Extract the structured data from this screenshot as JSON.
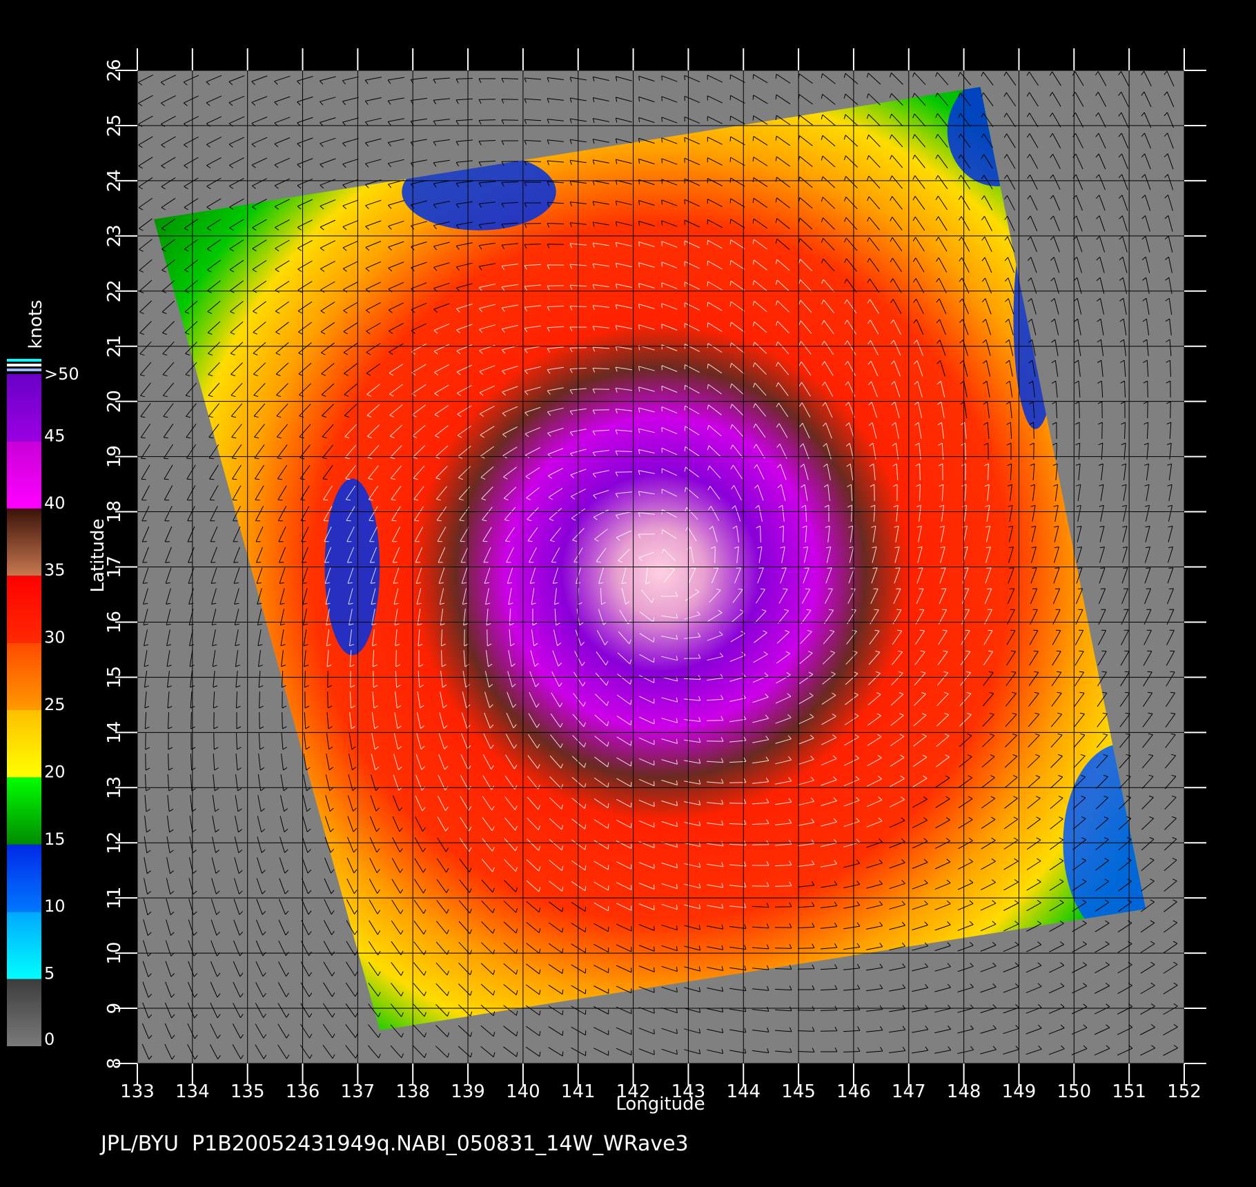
{
  "map": {
    "type": "scatterometer-wind-field",
    "lon_range": [
      133,
      152
    ],
    "lat_range": [
      8,
      26
    ],
    "lon_ticks": [
      "133",
      "134",
      "135",
      "136",
      "137",
      "138",
      "139",
      "140",
      "141",
      "142",
      "143",
      "144",
      "145",
      "146",
      "147",
      "148",
      "149",
      "150",
      "151",
      "152"
    ],
    "lat_ticks": [
      "8",
      "9",
      "10",
      "11",
      "12",
      "13",
      "14",
      "15",
      "16",
      "17",
      "18",
      "19",
      "20",
      "21",
      "22",
      "23",
      "24",
      "25",
      "26"
    ],
    "xlabel": "Longitude",
    "ylabel": "Latitude",
    "background_color": "#808080",
    "grid": true,
    "swath_corners_lonlat": [
      [
        133.3,
        23.3
      ],
      [
        148.3,
        25.7
      ],
      [
        151.3,
        10.8
      ],
      [
        137.4,
        8.6
      ]
    ],
    "storm_center_lonlat": [
      142.5,
      16.9
    ]
  },
  "colorbar": {
    "unit_label": "knots",
    "labels": [
      ">50",
      "45",
      "40",
      "35",
      "30",
      "25",
      "20",
      "15",
      "10",
      "5",
      "0"
    ],
    "bands": [
      {
        "from": 0,
        "to": 5,
        "colors": [
          "#7a7a7a",
          "#3c3c3c"
        ]
      },
      {
        "from": 5,
        "to": 10,
        "colors": [
          "#00ffff",
          "#00a8ff"
        ]
      },
      {
        "from": 10,
        "to": 15,
        "colors": [
          "#0078ff",
          "#0028e6"
        ]
      },
      {
        "from": 15,
        "to": 20,
        "colors": [
          "#008a00",
          "#00ff00"
        ]
      },
      {
        "from": 20,
        "to": 25,
        "colors": [
          "#ffff00",
          "#ffbf00"
        ]
      },
      {
        "from": 25,
        "to": 30,
        "colors": [
          "#ff9a00",
          "#ff4a00"
        ]
      },
      {
        "from": 30,
        "to": 35,
        "colors": [
          "#ff2a00",
          "#ff0000"
        ]
      },
      {
        "from": 35,
        "to": 40,
        "colors": [
          "#c87850",
          "#3a1208"
        ]
      },
      {
        "from": 40,
        "to": 45,
        "colors": [
          "#ff00ff",
          "#c800d8"
        ]
      },
      {
        "from": 45,
        "to": 50,
        "colors": [
          "#9a00e0",
          "#6a00c8"
        ]
      }
    ]
  },
  "footer": {
    "text": "JPL/BYU  P1B20052431949q.NABI_050831_14W_WRave3"
  }
}
